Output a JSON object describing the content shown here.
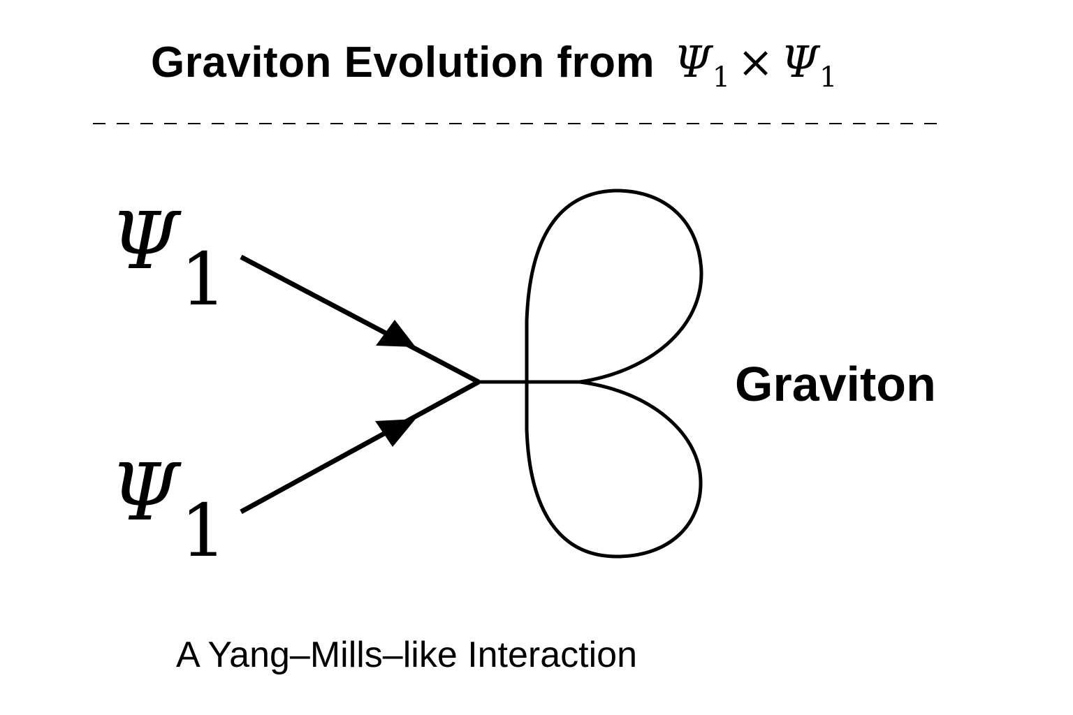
{
  "title": {
    "text": "Graviton Evolution from",
    "lhs_symbol": "Ψ",
    "lhs_subscript": "1",
    "operator": "×",
    "rhs_symbol": "Ψ",
    "rhs_subscript": "1"
  },
  "incoming": [
    {
      "symbol": "Ψ",
      "subscript": "1"
    },
    {
      "symbol": "Ψ",
      "subscript": "1"
    }
  ],
  "outgoing": {
    "label": "Graviton"
  },
  "caption": "A Yang–Mills–like Interaction",
  "colors": {
    "ink": "#000000",
    "background": "#ffffff"
  }
}
